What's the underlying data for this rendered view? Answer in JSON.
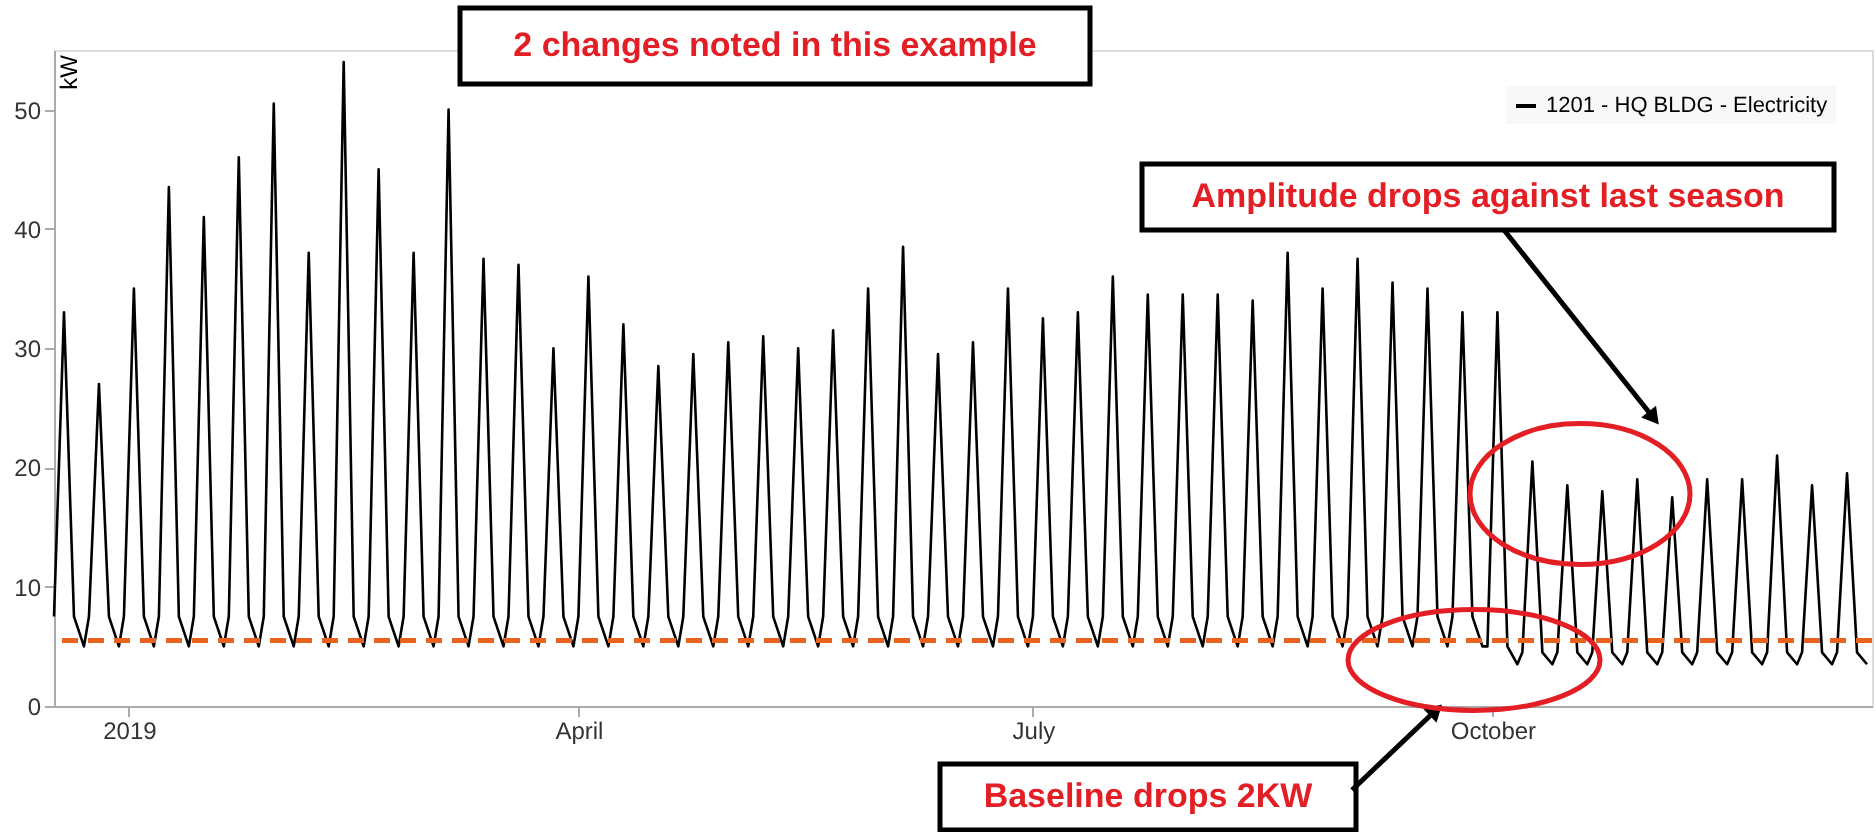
{
  "chart_data": {
    "type": "line",
    "ylabel": "kW",
    "x": [
      "2018-12-17",
      "2018-12-19",
      "2018-12-21",
      "2018-12-23",
      "2018-12-24",
      "2018-12-26",
      "2018-12-28",
      "2018-12-30",
      "2018-12-31",
      "2019-01-02",
      "2019-01-04",
      "2019-01-06",
      "2019-01-07",
      "2019-01-09",
      "2019-01-11",
      "2019-01-13",
      "2019-01-14",
      "2019-01-16",
      "2019-01-18",
      "2019-01-20",
      "2019-01-21",
      "2019-01-23",
      "2019-01-25",
      "2019-01-27",
      "2019-01-28",
      "2019-01-30",
      "2019-02-01",
      "2019-02-03",
      "2019-02-04",
      "2019-02-06",
      "2019-02-08",
      "2019-02-10",
      "2019-02-11",
      "2019-02-13",
      "2019-02-15",
      "2019-02-17",
      "2019-02-18",
      "2019-02-20",
      "2019-02-22",
      "2019-02-24",
      "2019-02-25",
      "2019-02-27",
      "2019-03-01",
      "2019-03-03",
      "2019-03-04",
      "2019-03-06",
      "2019-03-08",
      "2019-03-10",
      "2019-03-11",
      "2019-03-13",
      "2019-03-15",
      "2019-03-17",
      "2019-03-18",
      "2019-03-20",
      "2019-03-22",
      "2019-03-24",
      "2019-03-25",
      "2019-03-27",
      "2019-03-29",
      "2019-03-31",
      "2019-04-01",
      "2019-04-03",
      "2019-04-05",
      "2019-04-07",
      "2019-04-08",
      "2019-04-10",
      "2019-04-12",
      "2019-04-14",
      "2019-04-15",
      "2019-04-17",
      "2019-04-19",
      "2019-04-21",
      "2019-04-22",
      "2019-04-24",
      "2019-04-26",
      "2019-04-28",
      "2019-04-29",
      "2019-05-01",
      "2019-05-03",
      "2019-05-05",
      "2019-05-06",
      "2019-05-08",
      "2019-05-10",
      "2019-05-12",
      "2019-05-13",
      "2019-05-15",
      "2019-05-17",
      "2019-05-19",
      "2019-05-20",
      "2019-05-22",
      "2019-05-24",
      "2019-05-26",
      "2019-05-27",
      "2019-05-29",
      "2019-05-31",
      "2019-06-02",
      "2019-06-03",
      "2019-06-05",
      "2019-06-07",
      "2019-06-09",
      "2019-06-10",
      "2019-06-12",
      "2019-06-14",
      "2019-06-16",
      "2019-06-17",
      "2019-06-19",
      "2019-06-21",
      "2019-06-23",
      "2019-06-24",
      "2019-06-26",
      "2019-06-28",
      "2019-06-30",
      "2019-07-01",
      "2019-07-03",
      "2019-07-05",
      "2019-07-07",
      "2019-07-08",
      "2019-07-10",
      "2019-07-12",
      "2019-07-14",
      "2019-07-15",
      "2019-07-17",
      "2019-07-19",
      "2019-07-21",
      "2019-07-22",
      "2019-07-24",
      "2019-07-26",
      "2019-07-28",
      "2019-07-29",
      "2019-07-31",
      "2019-08-02",
      "2019-08-04",
      "2019-08-05",
      "2019-08-07",
      "2019-08-09",
      "2019-08-11",
      "2019-08-12",
      "2019-08-14",
      "2019-08-16",
      "2019-08-18",
      "2019-08-19",
      "2019-08-21",
      "2019-08-23",
      "2019-08-25",
      "2019-08-26",
      "2019-08-28",
      "2019-08-30",
      "2019-09-01",
      "2019-09-02",
      "2019-09-04",
      "2019-09-06",
      "2019-09-08",
      "2019-09-09",
      "2019-09-11",
      "2019-09-13",
      "2019-09-15",
      "2019-09-16",
      "2019-09-18",
      "2019-09-20",
      "2019-09-22",
      "2019-09-23",
      "2019-09-25",
      "2019-09-27",
      "2019-09-29",
      "2019-09-30",
      "2019-10-02",
      "2019-10-04",
      "2019-10-06",
      "2019-10-07",
      "2019-10-09",
      "2019-10-11",
      "2019-10-13",
      "2019-10-14",
      "2019-10-16",
      "2019-10-18",
      "2019-10-20",
      "2019-10-21",
      "2019-10-23",
      "2019-10-25",
      "2019-10-27",
      "2019-10-28",
      "2019-10-30",
      "2019-11-01",
      "2019-11-03",
      "2019-11-04",
      "2019-11-06",
      "2019-11-08",
      "2019-11-10",
      "2019-11-11",
      "2019-11-13",
      "2019-11-15",
      "2019-11-17",
      "2019-11-18",
      "2019-11-20",
      "2019-11-22",
      "2019-11-24",
      "2019-11-25",
      "2019-11-27",
      "2019-11-29",
      "2019-12-01",
      "2019-12-02",
      "2019-12-04",
      "2019-12-06",
      "2019-12-08",
      "2019-12-09",
      "2019-12-11",
      "2019-12-13",
      "2019-12-15"
    ],
    "series": [
      {
        "name": "1201 - HQ BLDG - Electricity",
        "color": "#000000",
        "values": [
          7.5,
          33,
          7.5,
          5,
          7.5,
          27,
          7.5,
          5,
          7.5,
          35,
          7.5,
          5,
          7.5,
          43.5,
          7.5,
          5,
          7.5,
          41,
          7.5,
          5,
          7.5,
          46,
          7.5,
          5,
          7.5,
          50.5,
          7.5,
          5,
          7.5,
          38,
          7.5,
          5,
          7.5,
          54,
          7.5,
          5,
          7.5,
          45,
          7.5,
          5,
          7.5,
          38,
          7.5,
          5,
          7.5,
          50,
          7.5,
          5,
          7.5,
          37.5,
          7.5,
          5,
          7.5,
          37,
          7.5,
          5,
          7.5,
          30,
          7.5,
          5,
          7.5,
          36,
          7.5,
          5,
          7.5,
          32,
          7.5,
          5,
          7.5,
          28.5,
          7.5,
          5,
          7.5,
          29.5,
          7.5,
          5,
          7.5,
          30.5,
          7.5,
          5,
          7.5,
          31,
          7.5,
          5,
          7.5,
          30,
          7.5,
          5,
          7.5,
          31.5,
          7.5,
          5,
          7.5,
          35,
          7.5,
          5,
          7.5,
          38.5,
          7.5,
          5,
          7.5,
          29.5,
          7.5,
          5,
          7.5,
          30.5,
          7.5,
          5,
          7.5,
          35,
          7.5,
          5,
          7.5,
          32.5,
          7.5,
          5,
          7.5,
          33,
          7.5,
          5,
          7.5,
          36,
          7.5,
          5,
          7.5,
          34.5,
          7.5,
          5,
          7.5,
          34.5,
          7.5,
          5,
          7.5,
          34.5,
          7.5,
          5,
          7.5,
          34,
          7.5,
          5,
          7.5,
          38,
          7.5,
          5,
          7.5,
          35,
          7.5,
          5,
          7.5,
          37.5,
          7.5,
          5,
          7.5,
          35.5,
          7.5,
          5,
          7.5,
          35,
          7.5,
          5,
          7.5,
          33,
          7.5,
          5,
          5,
          33,
          5,
          3.5,
          4.5,
          20.5,
          4.5,
          3.5,
          4.5,
          18.5,
          4.5,
          3.5,
          4.5,
          18,
          4.5,
          3.5,
          4.5,
          19,
          4.5,
          3.5,
          4.5,
          17.5,
          4.5,
          3.5,
          4.5,
          19,
          4.5,
          3.5,
          4.5,
          19,
          4.5,
          3.5,
          4.5,
          21,
          4.5,
          3.5,
          4.5,
          18.5,
          4.5,
          3.5,
          4.5,
          19.5,
          4.5,
          3.5
        ]
      }
    ],
    "xlim": [
      "2018-12-17",
      "2019-12-16"
    ],
    "xticks": [
      {
        "value": "2019-01-01",
        "label": "2019"
      },
      {
        "value": "2019-04-01",
        "label": "April"
      },
      {
        "value": "2019-07-01",
        "label": "July"
      },
      {
        "value": "2019-10-01",
        "label": "October"
      }
    ],
    "ylim": [
      0,
      55
    ],
    "yticks": [
      0,
      10,
      20,
      30,
      40,
      50
    ],
    "ref_lines": [
      {
        "axis": "y",
        "value": 5.5,
        "color": "#e8641e",
        "line_style": "dashed"
      }
    ],
    "annotations": [
      "2 changes noted in this example",
      "Amplitude drops against last season",
      "Baseline drops 2KW"
    ],
    "legend": "top right"
  }
}
